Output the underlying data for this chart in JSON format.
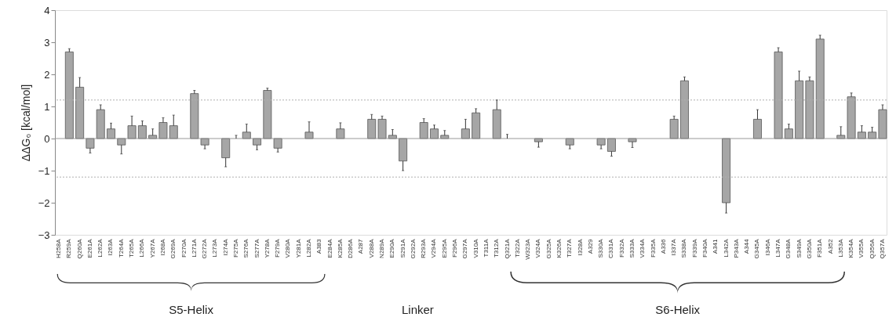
{
  "chart_data": {
    "type": "bar",
    "ylabel": "ΔΔG₀ [kcal/mol]",
    "categories": [
      "H258A",
      "R259A",
      "Q260A",
      "E261A",
      "L262A",
      "I263A",
      "T264A",
      "T265A",
      "L266A",
      "Y267A",
      "I268A",
      "G269A",
      "F270A",
      "L271A",
      "G272A",
      "L273A",
      "I274A",
      "F275A",
      "S276A",
      "S277A",
      "Y278A",
      "F279A",
      "V280A",
      "Y281A",
      "L282A",
      "A383",
      "E284A",
      "K285A",
      "D286A",
      "A287",
      "V288A",
      "N289A",
      "E290A",
      "S291A",
      "G292A",
      "R293A",
      "V294A",
      "E295A",
      "F296A",
      "G297A",
      "V310A",
      "T311A",
      "T312A",
      "Q321A",
      "T322A",
      "W323A",
      "V324A",
      "G325A",
      "K326A",
      "T327A",
      "I328A",
      "A329",
      "S330A",
      "C331A",
      "F332A",
      "S333A",
      "V334A",
      "F335A",
      "A336",
      "I337A",
      "S338A",
      "F339A",
      "F340A",
      "A341",
      "L342A",
      "P343A",
      "A344",
      "G345A",
      "I346A",
      "L347A",
      "G348A",
      "S349A",
      "G350A",
      "F351A",
      "A352",
      "L353A",
      "K354A",
      "V355A",
      "Q356A",
      "Q357A"
    ],
    "values": [
      null,
      2.7,
      1.6,
      -0.3,
      0.9,
      0.3,
      -0.2,
      0.4,
      0.4,
      0.1,
      0.5,
      0.4,
      null,
      1.4,
      -0.2,
      null,
      -0.6,
      0,
      0.2,
      -0.2,
      1.5,
      -0.3,
      null,
      null,
      0.2,
      null,
      null,
      0.3,
      null,
      null,
      0.6,
      0.6,
      0.1,
      -0.7,
      null,
      0.5,
      0.3,
      0.1,
      null,
      0.3,
      0.8,
      null,
      0.9,
      0,
      null,
      null,
      -0.1,
      null,
      null,
      -0.2,
      null,
      null,
      -0.2,
      -0.4,
      null,
      -0.1,
      null,
      null,
      null,
      0.6,
      1.8,
      null,
      null,
      null,
      -2.0,
      null,
      null,
      0.6,
      null,
      2.7,
      0.3,
      1.8,
      1.8,
      3.1,
      null,
      0.1,
      1.3,
      0.2,
      0.2,
      0.9
    ],
    "errors": [
      null,
      [
        2.7,
        2.8
      ],
      [
        1.6,
        1.9
      ],
      [
        -0.45,
        -0.3
      ],
      [
        0.9,
        1.05
      ],
      [
        0.3,
        0.48
      ],
      [
        -0.48,
        -0.2
      ],
      [
        0.4,
        0.7
      ],
      [
        0.4,
        0.55
      ],
      [
        0.1,
        0.3
      ],
      [
        0.5,
        0.65
      ],
      [
        0.4,
        0.73
      ],
      null,
      [
        1.4,
        1.5
      ],
      [
        -0.32,
        -0.2
      ],
      null,
      [
        -0.88,
        -0.6
      ],
      [
        0,
        0.1
      ],
      [
        0.2,
        0.45
      ],
      [
        -0.35,
        -0.2
      ],
      [
        1.5,
        1.57
      ],
      [
        -0.42,
        -0.3
      ],
      null,
      null,
      [
        0.2,
        0.52
      ],
      null,
      null,
      [
        0.3,
        0.49
      ],
      null,
      null,
      [
        0.6,
        0.75
      ],
      [
        0.6,
        0.7
      ],
      [
        0.1,
        0.28
      ],
      [
        -1.0,
        -0.7
      ],
      null,
      [
        0.5,
        0.62
      ],
      [
        0.3,
        0.42
      ],
      [
        0.1,
        0.25
      ],
      null,
      [
        0.3,
        0.6
      ],
      [
        0.8,
        0.93
      ],
      null,
      [
        0.9,
        1.2
      ],
      [
        0,
        0.13
      ],
      null,
      null,
      [
        -0.27,
        -0.1
      ],
      null,
      null,
      [
        -0.32,
        -0.2
      ],
      null,
      null,
      [
        -0.32,
        -0.2
      ],
      [
        -0.55,
        -0.4
      ],
      null,
      [
        -0.28,
        -0.1
      ],
      null,
      null,
      null,
      [
        0.6,
        0.7
      ],
      [
        1.8,
        1.92
      ],
      null,
      null,
      null,
      [
        -2.32,
        -2.0
      ],
      null,
      null,
      [
        0.6,
        0.9
      ],
      null,
      [
        2.7,
        2.83
      ],
      [
        0.3,
        0.45
      ],
      [
        1.8,
        2.1
      ],
      [
        1.8,
        1.92
      ],
      [
        3.1,
        3.22
      ],
      null,
      [
        0.1,
        0.37
      ],
      [
        1.3,
        1.42
      ],
      [
        0.2,
        0.4
      ],
      [
        0.2,
        0.35
      ],
      [
        0.9,
        1.05
      ]
    ],
    "color": "#a6a6a6",
    "ylim": [
      -3,
      4
    ],
    "yticks": [
      -3,
      -2,
      -1,
      0,
      1,
      2,
      3,
      4
    ],
    "ref_lines": [
      {
        "axis": "y",
        "value": 0,
        "color": "#999999",
        "line_style": "solid"
      },
      {
        "axis": "y",
        "value": 1.2,
        "color": "#b0b0b0",
        "line_style": "dotted"
      },
      {
        "axis": "y",
        "value": -1.2,
        "color": "#b0b0b0",
        "line_style": "dotted"
      }
    ],
    "annotations": [
      "S5-Helix",
      "Linker",
      "S6-Helix"
    ],
    "grid": false
  }
}
